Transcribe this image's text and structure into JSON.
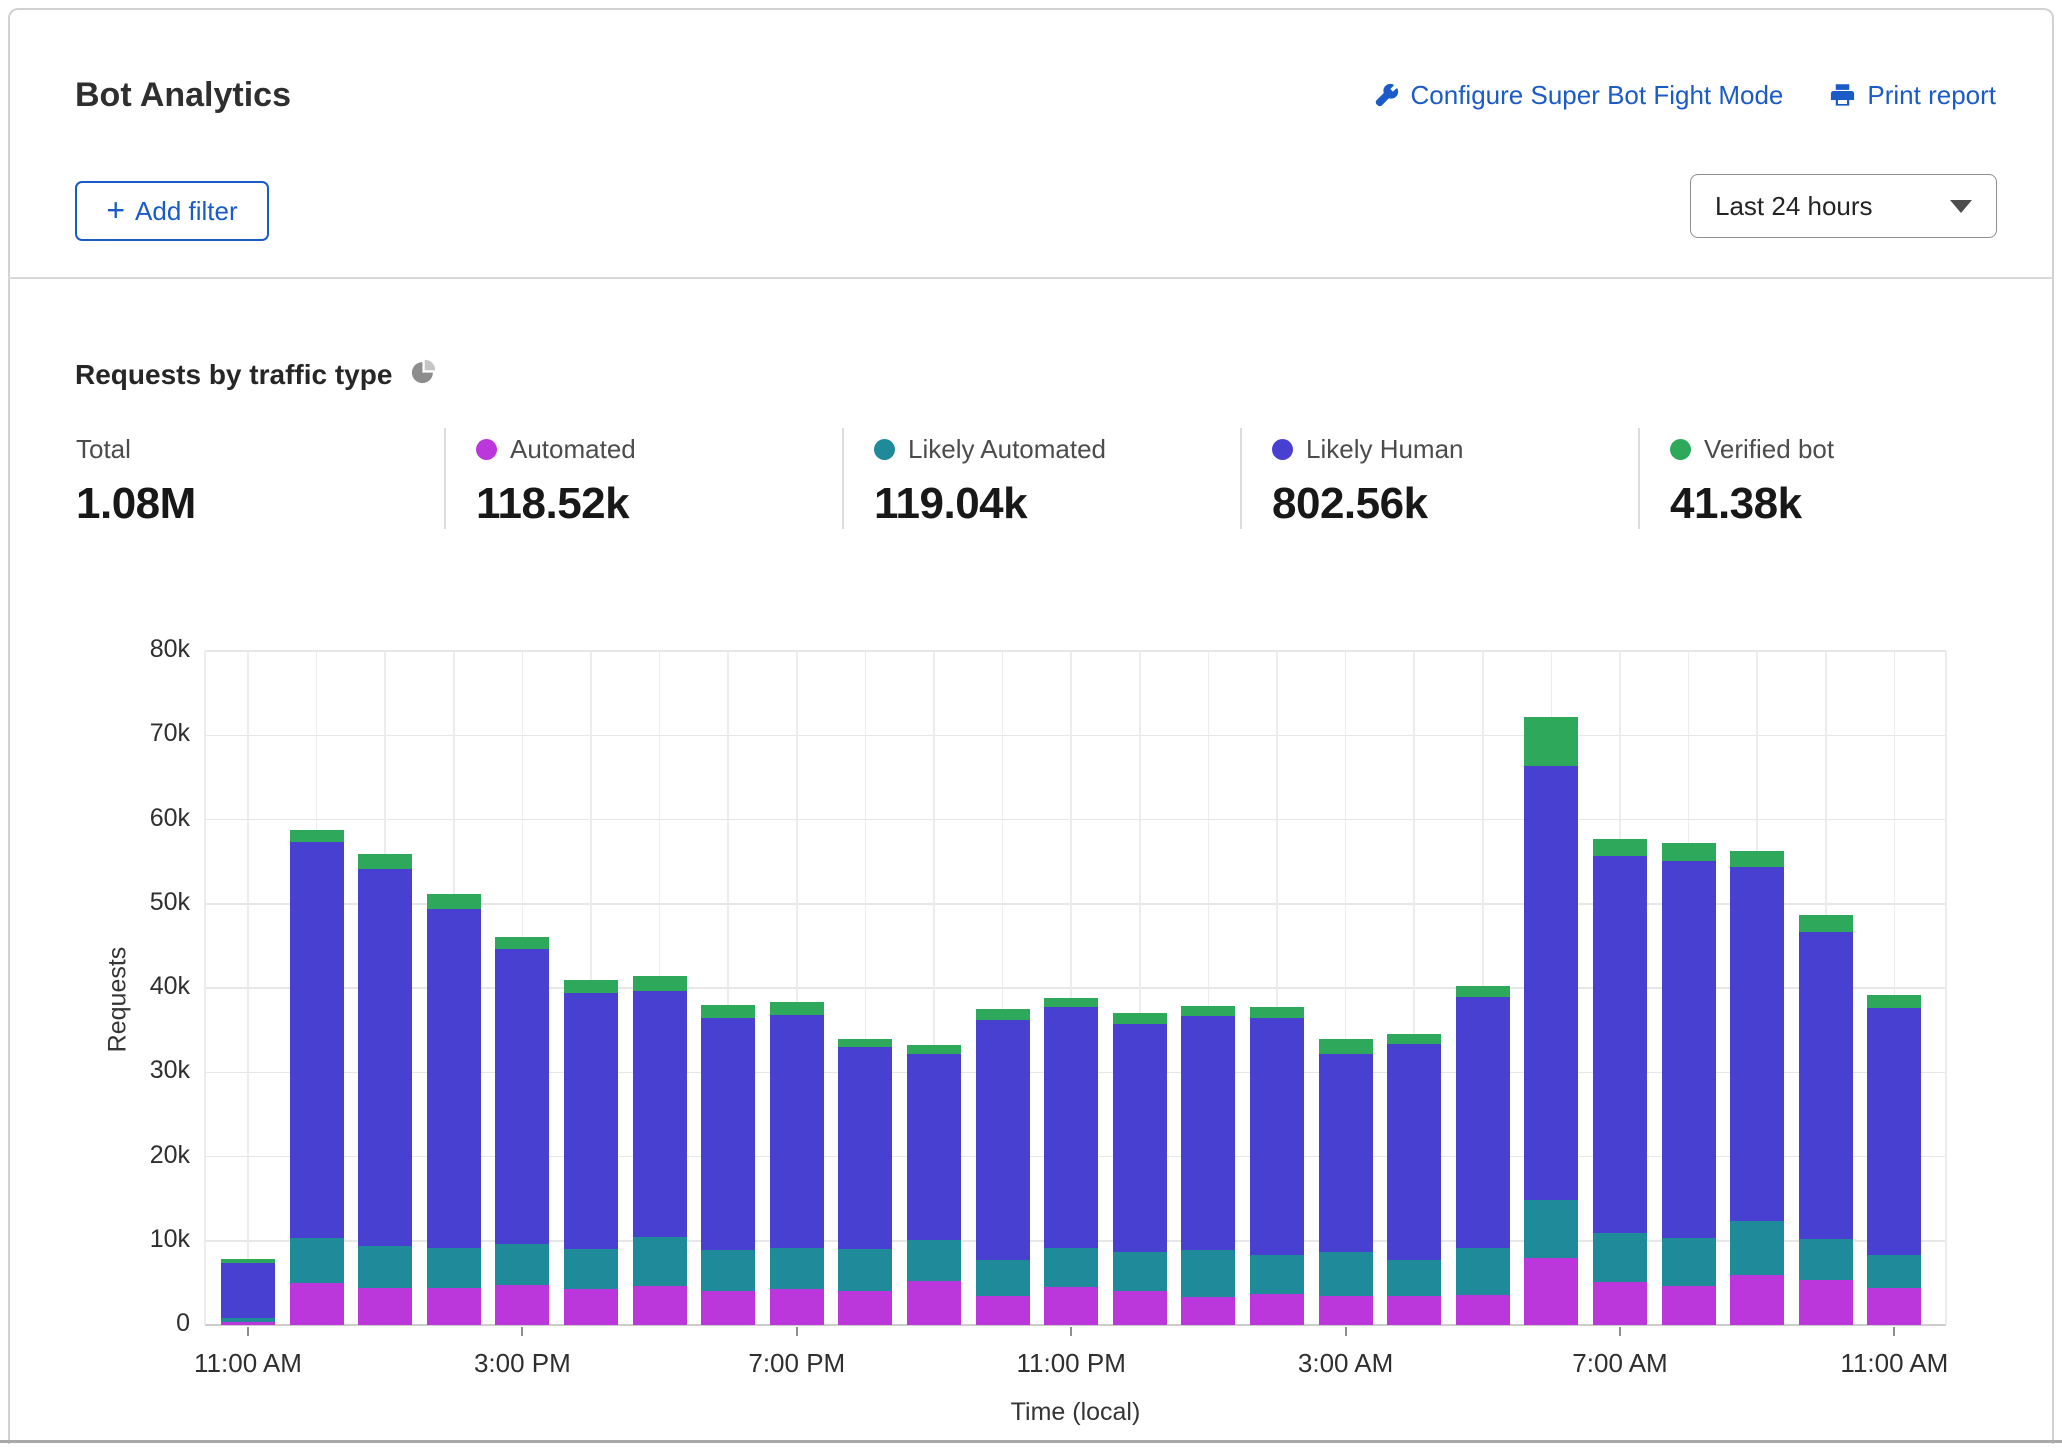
{
  "header": {
    "title": "Bot Analytics",
    "configure_link": "Configure Super Bot Fight Mode",
    "print_link": "Print report",
    "add_filter_label": "Add filter",
    "add_filter_plus": "+",
    "time_range_selected": "Last 24 hours"
  },
  "section": {
    "title": "Requests by traffic type"
  },
  "colors": {
    "link_blue": "#1a5bc8",
    "automated": "#bb36db",
    "likely_automated": "#1f8a99",
    "likely_human": "#4840d0",
    "verified_bot": "#2ea95c"
  },
  "stats": [
    {
      "label": "Total",
      "value": "1.08M",
      "dot_color": ""
    },
    {
      "label": "Automated",
      "value": "118.52k",
      "dot_color": "#bb36db"
    },
    {
      "label": "Likely Automated",
      "value": "119.04k",
      "dot_color": "#1f8a99"
    },
    {
      "label": "Likely Human",
      "value": "802.56k",
      "dot_color": "#4840d0"
    },
    {
      "label": "Verified bot",
      "value": "41.38k",
      "dot_color": "#2ea95c"
    }
  ],
  "chart_data": {
    "type": "bar",
    "stacked": true,
    "title": "Requests by traffic type",
    "xlabel": "Time (local)",
    "ylabel": "Requests",
    "unit": "thousands of requests",
    "ylim_k": [
      0,
      80
    ],
    "y_ticks": [
      {
        "v": 0,
        "label": "0"
      },
      {
        "v": 10,
        "label": "10k"
      },
      {
        "v": 20,
        "label": "20k"
      },
      {
        "v": 30,
        "label": "30k"
      },
      {
        "v": 40,
        "label": "40k"
      },
      {
        "v": 50,
        "label": "50k"
      },
      {
        "v": 60,
        "label": "60k"
      },
      {
        "v": 70,
        "label": "70k"
      },
      {
        "v": 80,
        "label": "80k"
      }
    ],
    "categories": [
      "11:00 AM",
      "12:00 PM",
      "1:00 PM",
      "2:00 PM",
      "3:00 PM",
      "4:00 PM",
      "5:00 PM",
      "6:00 PM",
      "7:00 PM",
      "8:00 PM",
      "9:00 PM",
      "10:00 PM",
      "11:00 PM",
      "12:00 AM",
      "1:00 AM",
      "2:00 AM",
      "3:00 AM",
      "4:00 AM",
      "5:00 AM",
      "6:00 AM",
      "7:00 AM",
      "8:00 AM",
      "9:00 AM",
      "10:00 AM",
      "11:00 AM"
    ],
    "x_tick_indices": [
      0,
      4,
      8,
      12,
      16,
      20,
      24
    ],
    "legend_position": "top",
    "grid": true,
    "series": [
      {
        "name": "Automated",
        "color": "#bb36db",
        "values_k": [
          0.4,
          5.0,
          4.4,
          4.4,
          4.7,
          4.3,
          4.6,
          4.0,
          4.3,
          4.0,
          5.2,
          3.4,
          4.5,
          4.0,
          3.3,
          3.7,
          3.5,
          3.5,
          3.6,
          7.9,
          5.1,
          4.6,
          5.9,
          5.4,
          4.4
        ]
      },
      {
        "name": "Likely Automated",
        "color": "#1f8a99",
        "values_k": [
          0.4,
          5.3,
          5.0,
          4.8,
          4.9,
          4.7,
          5.8,
          4.9,
          4.9,
          5.0,
          4.9,
          4.3,
          4.7,
          4.7,
          5.6,
          4.6,
          5.2,
          4.2,
          5.6,
          6.9,
          5.8,
          5.7,
          6.4,
          4.8,
          3.9
        ]
      },
      {
        "name": "Likely Human",
        "color": "#4840d0",
        "values_k": [
          6.6,
          47.0,
          44.7,
          40.2,
          35.0,
          30.4,
          29.3,
          27.6,
          27.6,
          24.0,
          22.1,
          28.5,
          28.5,
          27.0,
          27.8,
          28.1,
          23.5,
          25.6,
          29.7,
          51.5,
          44.8,
          44.8,
          42.1,
          36.4,
          29.3
        ]
      },
      {
        "name": "Verified bot",
        "color": "#2ea95c",
        "values_k": [
          0.4,
          1.4,
          1.8,
          1.8,
          1.5,
          1.6,
          1.7,
          1.5,
          1.6,
          1.0,
          1.0,
          1.3,
          1.1,
          1.3,
          1.2,
          1.4,
          1.8,
          1.3,
          1.4,
          5.9,
          2.0,
          2.1,
          1.9,
          2.1,
          1.6
        ]
      }
    ]
  }
}
